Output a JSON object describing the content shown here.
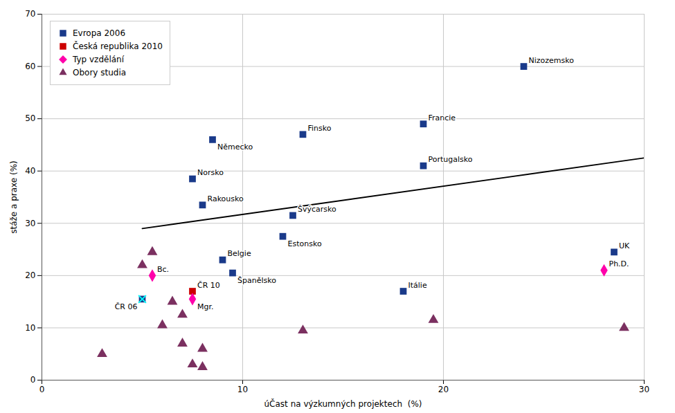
{
  "chart_data": {
    "type": "scatter",
    "xlabel": "úČast na výzkumných projektech  (%)",
    "ylabel": "stáže a praxe (%)",
    "xlim": [
      0,
      30
    ],
    "ylim": [
      0,
      70
    ],
    "xticks": [
      0,
      10,
      20,
      30
    ],
    "yticks": [
      0,
      10,
      20,
      30,
      40,
      50,
      60,
      70
    ],
    "grid": true,
    "legend": "upper left",
    "series": [
      {
        "name": "Evropa 2006",
        "color": "#1a3a8a",
        "marker": "square",
        "x": [
          8.5,
          13,
          7.5,
          8,
          12.5,
          12,
          9,
          9.5,
          19,
          19,
          24,
          18,
          28.5
        ],
        "values": [
          46,
          47,
          38.5,
          33.5,
          31.5,
          27.5,
          23,
          20.5,
          41,
          49,
          60,
          17,
          24.5
        ],
        "labels": [
          "Německo",
          "Finsko",
          "Norsko",
          "Rakousko",
          "Švýcarsko",
          "Estonsko",
          "Belgie",
          "Španělsko",
          "Portugalsko",
          "Francie",
          "Nizozemsko",
          "Itálie",
          "UK"
        ]
      },
      {
        "color": "#1a3a8a",
        "marker": "square_x",
        "x": [
          5
        ],
        "values": [
          15.5
        ],
        "labels": [
          "ČR 06"
        ]
      },
      {
        "name": "Česká republika 2010",
        "color": "#cc0000",
        "marker": "square",
        "x": [
          7.5
        ],
        "values": [
          17.0
        ],
        "labels": [
          "ČR 10"
        ]
      },
      {
        "name": "Typ vzdělání",
        "color": "#ff00aa",
        "marker": "diamond",
        "x": [
          5.5,
          7.5,
          28.0
        ],
        "values": [
          20.0,
          15.5,
          21.0
        ],
        "labels": [
          "Bc.",
          "Mgr.",
          "Ph.D."
        ]
      },
      {
        "name": "Obory studia",
        "color": "#7b3060",
        "marker": "triangle",
        "x": [
          3.0,
          5.0,
          5.5,
          6.0,
          6.5,
          7.0,
          7.0,
          7.5,
          8.0,
          8.0,
          13.0,
          19.5,
          29.0
        ],
        "values": [
          5.0,
          22.0,
          24.5,
          10.5,
          15.0,
          7.0,
          12.5,
          3.0,
          6.0,
          2.5,
          9.5,
          11.5,
          10.0
        ]
      },
      {
        "type": "line",
        "color": "#000000",
        "x": [
          5.0,
          30.0
        ],
        "values": [
          29.0,
          42.5
        ]
      }
    ]
  }
}
